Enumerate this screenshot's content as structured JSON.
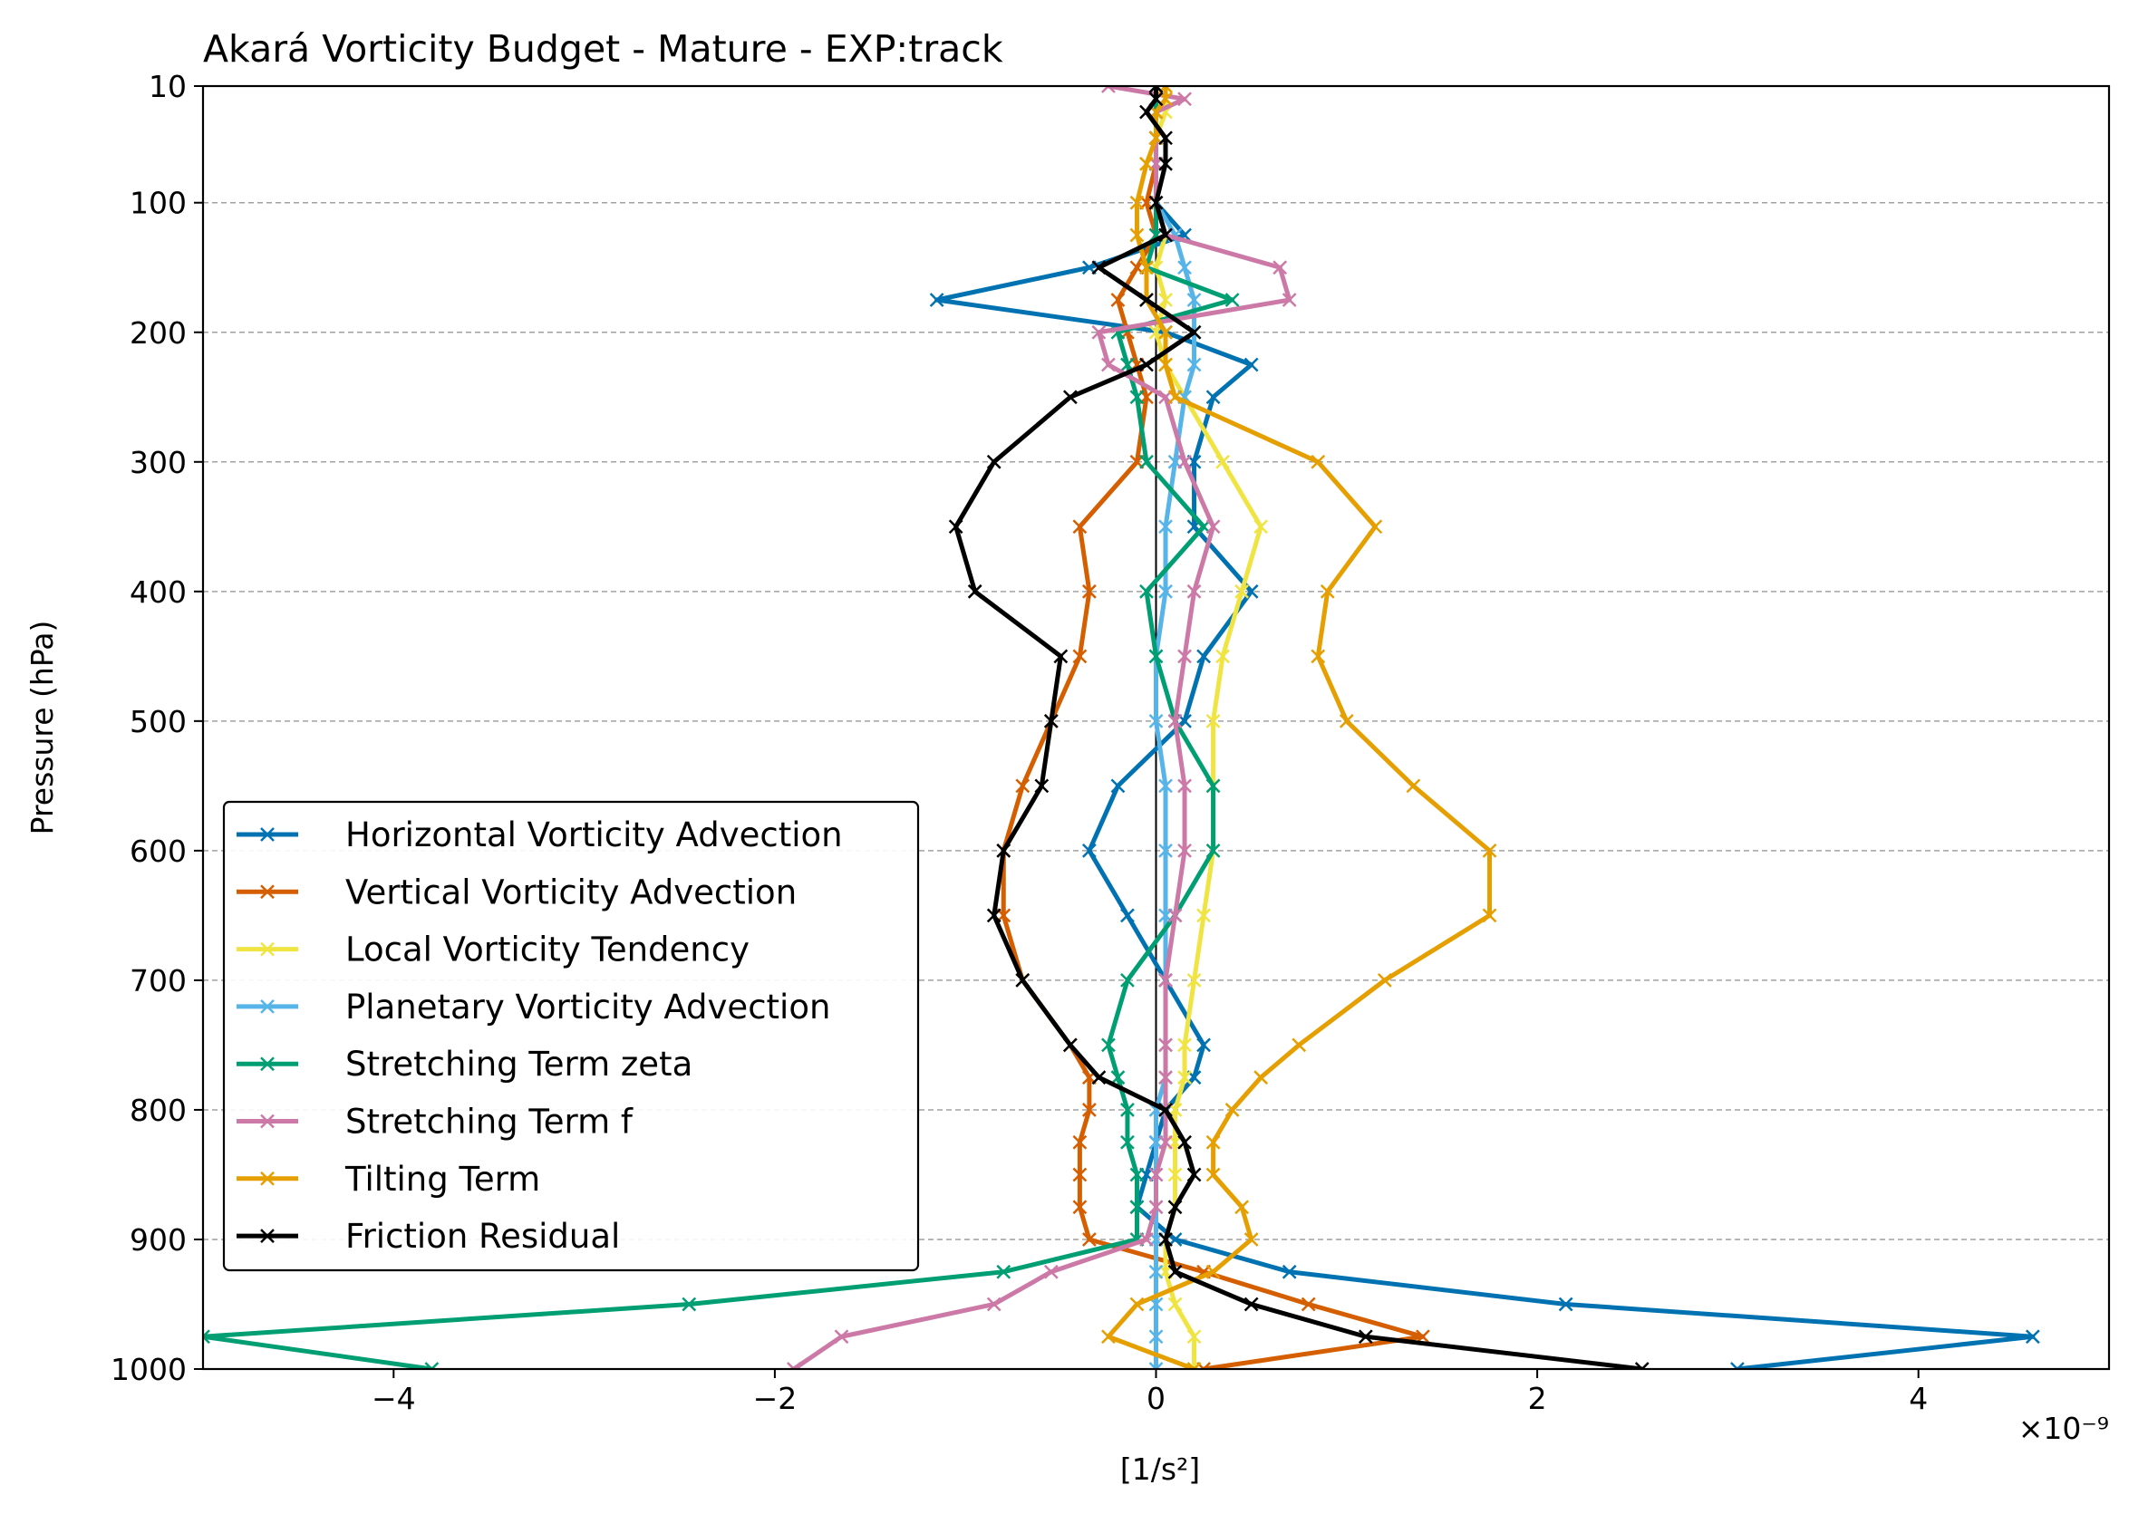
{
  "chart_data": {
    "type": "line",
    "title": "Akará Vorticity Budget - Mature - EXP:track",
    "xlabel": "[1/s²]",
    "ylabel": "Pressure (hPa)",
    "x_scale_label": "×10⁻⁹",
    "xlim": [
      -5,
      5
    ],
    "ylim": [
      1000,
      10
    ],
    "y_inverted": true,
    "x_ticks": [
      -4,
      -2,
      0,
      2,
      4
    ],
    "x_tick_labels": [
      "−4",
      "−2",
      "0",
      "2",
      "4"
    ],
    "y_ticks": [
      10,
      100,
      200,
      300,
      400,
      500,
      600,
      700,
      800,
      900,
      1000
    ],
    "y_tick_labels": [
      "10",
      "100",
      "200",
      "300",
      "400",
      "500",
      "600",
      "700",
      "800",
      "900",
      "1000"
    ],
    "grid": "horizontal dashed",
    "legend_position": "lower-left",
    "marker": "x",
    "pressure_levels": [
      10,
      20,
      30,
      50,
      70,
      100,
      125,
      150,
      175,
      200,
      225,
      250,
      300,
      350,
      400,
      450,
      500,
      550,
      600,
      650,
      700,
      750,
      775,
      800,
      825,
      850,
      875,
      900,
      925,
      950,
      975,
      1000
    ],
    "series": [
      {
        "name": "Horizontal Vorticity Advection",
        "color": "#0072B2",
        "values": [
          0.0,
          0.0,
          0.0,
          0.0,
          0.0,
          0.0,
          0.15,
          -0.35,
          -1.15,
          0.05,
          0.5,
          0.3,
          0.2,
          0.2,
          0.5,
          0.25,
          0.15,
          -0.2,
          -0.35,
          -0.15,
          0.05,
          0.25,
          0.2,
          0.05,
          0.0,
          -0.05,
          -0.1,
          0.1,
          0.7,
          2.15,
          4.6,
          3.05
        ]
      },
      {
        "name": "Vertical Vorticity Advection",
        "color": "#D55E00",
        "values": [
          0.0,
          0.0,
          0.0,
          0.0,
          0.0,
          -0.05,
          0.0,
          -0.1,
          -0.2,
          -0.15,
          -0.1,
          -0.05,
          -0.1,
          -0.4,
          -0.35,
          -0.4,
          -0.55,
          -0.7,
          -0.8,
          -0.8,
          -0.7,
          -0.45,
          -0.35,
          -0.35,
          -0.4,
          -0.4,
          -0.4,
          -0.35,
          0.25,
          0.8,
          1.4,
          0.25
        ]
      },
      {
        "name": "Local Vorticity Tendency",
        "color": "#F0E442",
        "values": [
          0.05,
          0.05,
          0.05,
          0.0,
          0.0,
          0.0,
          0.05,
          0.0,
          0.05,
          0.0,
          0.05,
          0.15,
          0.35,
          0.55,
          0.45,
          0.35,
          0.3,
          0.3,
          0.3,
          0.25,
          0.2,
          0.15,
          0.15,
          0.1,
          0.1,
          0.1,
          0.1,
          0.05,
          0.05,
          0.1,
          0.2,
          0.2
        ]
      },
      {
        "name": "Planetary Vorticity Advection",
        "color": "#56B4E9",
        "values": [
          0.0,
          0.0,
          0.0,
          0.0,
          0.0,
          0.0,
          0.1,
          0.15,
          0.2,
          0.2,
          0.2,
          0.15,
          0.1,
          0.05,
          0.05,
          0.0,
          0.0,
          0.05,
          0.05,
          0.05,
          0.05,
          0.05,
          0.05,
          0.0,
          0.0,
          0.0,
          0.0,
          0.0,
          0.0,
          0.0,
          0.0,
          0.0
        ]
      },
      {
        "name": "Stretching Term zeta",
        "color": "#009E73",
        "values": [
          0.0,
          0.0,
          0.0,
          0.0,
          0.0,
          0.0,
          0.0,
          -0.05,
          0.4,
          -0.2,
          -0.15,
          -0.1,
          -0.05,
          0.25,
          -0.05,
          0.0,
          0.1,
          0.3,
          0.3,
          0.1,
          -0.15,
          -0.25,
          -0.2,
          -0.15,
          -0.15,
          -0.1,
          -0.1,
          -0.1,
          -0.8,
          -2.45,
          -5.0,
          -3.8
        ]
      },
      {
        "name": "Stretching Term f",
        "color": "#CC79A7",
        "values": [
          -0.25,
          0.15,
          0.0,
          0.0,
          0.0,
          0.0,
          0.05,
          0.65,
          0.7,
          -0.3,
          -0.25,
          0.05,
          0.15,
          0.3,
          0.2,
          0.15,
          0.1,
          0.15,
          0.15,
          0.1,
          0.05,
          0.05,
          0.05,
          0.05,
          0.05,
          0.0,
          0.0,
          -0.05,
          -0.55,
          -0.85,
          -1.65,
          -1.9
        ]
      },
      {
        "name": "Tilting Term",
        "color": "#E69F00",
        "values": [
          0.05,
          0.05,
          0.0,
          0.0,
          -0.05,
          -0.1,
          -0.1,
          -0.05,
          -0.05,
          0.05,
          0.05,
          0.1,
          0.85,
          1.15,
          0.9,
          0.85,
          1.0,
          1.35,
          1.75,
          1.75,
          1.2,
          0.75,
          0.55,
          0.4,
          0.3,
          0.3,
          0.45,
          0.5,
          0.3,
          -0.1,
          -0.25,
          0.2
        ]
      },
      {
        "name": "Friction Residual",
        "color": "#000000",
        "values": [
          0.0,
          0.0,
          -0.05,
          0.05,
          0.05,
          0.0,
          0.05,
          -0.3,
          -0.05,
          0.2,
          -0.05,
          -0.45,
          -0.85,
          -1.05,
          -0.95,
          -0.5,
          -0.55,
          -0.6,
          -0.8,
          -0.85,
          -0.7,
          -0.45,
          -0.3,
          0.05,
          0.15,
          0.2,
          0.1,
          0.05,
          0.1,
          0.5,
          1.1,
          2.55
        ]
      }
    ]
  }
}
